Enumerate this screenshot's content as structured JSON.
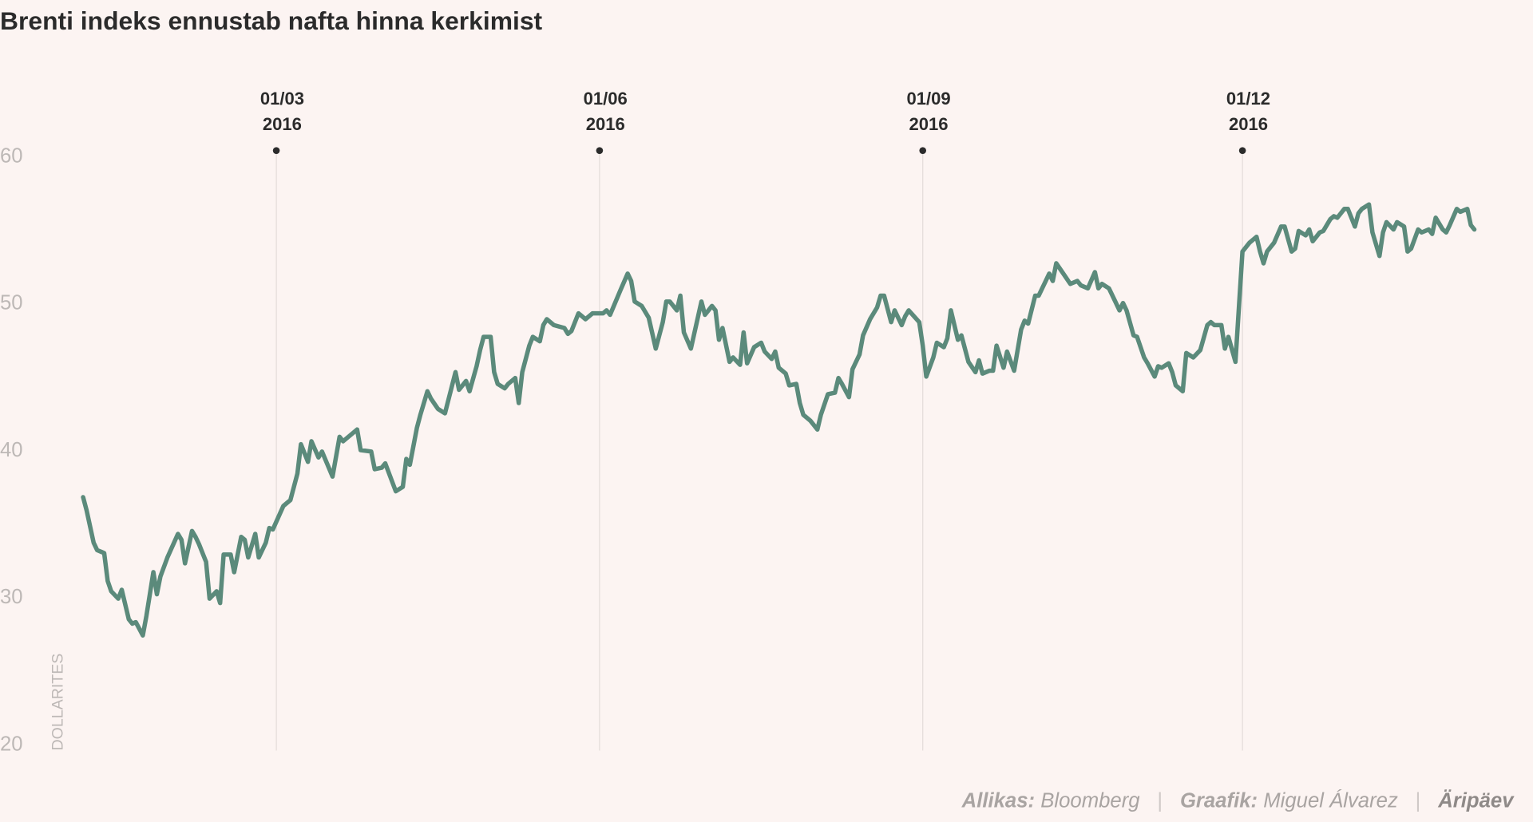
{
  "chart_data": {
    "type": "line",
    "title": "Brenti indeks ennustab nafta hinna kerkimist",
    "y_label": "DOLLARITES",
    "color": "#5b8a7b",
    "ylim": [
      20,
      60
    ],
    "yticks": [
      20,
      30,
      40,
      50,
      60
    ],
    "xlim": [
      "2016-01-06",
      "2017-02-05"
    ],
    "xticks": [
      {
        "value": "2016-03-01",
        "label": "01/03\n2016"
      },
      {
        "value": "2016-06-01",
        "label": "01/06\n2016"
      },
      {
        "value": "2016-09-01",
        "label": "01/09\n2016"
      },
      {
        "value": "2016-12-01",
        "label": "01/12\n2016"
      }
    ],
    "grid": true,
    "footer": {
      "source_label": "Allikas:",
      "source": "Bloomberg",
      "separator": "|",
      "author_label": "Graafik:",
      "author": "Miguel Álvarez",
      "brand": "Äripäev"
    },
    "x": [
      "2016-01-06",
      "2016-01-07",
      "2016-01-09",
      "2016-01-10",
      "2016-01-12",
      "2016-01-13",
      "2016-01-14",
      "2016-01-16",
      "2016-01-17",
      "2016-01-19",
      "2016-01-20",
      "2016-01-21",
      "2016-01-23",
      "2016-01-24",
      "2016-01-26",
      "2016-01-27",
      "2016-01-28",
      "2016-01-30",
      "2016-02-02",
      "2016-02-03",
      "2016-02-04",
      "2016-02-06",
      "2016-02-07",
      "2016-02-08",
      "2016-02-10",
      "2016-02-11",
      "2016-02-13",
      "2016-02-14",
      "2016-02-15",
      "2016-02-17",
      "2016-02-18",
      "2016-02-20",
      "2016-02-21",
      "2016-02-22",
      "2016-02-24",
      "2016-02-25",
      "2016-02-27",
      "2016-02-28",
      "2016-02-29",
      "2016-03-03",
      "2016-03-05",
      "2016-03-07",
      "2016-03-08",
      "2016-03-10",
      "2016-03-11",
      "2016-03-13",
      "2016-03-14",
      "2016-03-17",
      "2016-03-19",
      "2016-03-20",
      "2016-03-22",
      "2016-03-24",
      "2016-03-25",
      "2016-03-28",
      "2016-03-29",
      "2016-03-31",
      "2016-04-01",
      "2016-04-04",
      "2016-04-06",
      "2016-04-07",
      "2016-04-08",
      "2016-04-10",
      "2016-04-11",
      "2016-04-13",
      "2016-04-14",
      "2016-04-16",
      "2016-04-18",
      "2016-04-21",
      "2016-04-22",
      "2016-04-24",
      "2016-04-25",
      "2016-04-27",
      "2016-04-28",
      "2016-04-29",
      "2016-05-01",
      "2016-05-02",
      "2016-05-03",
      "2016-05-05",
      "2016-05-06",
      "2016-05-08",
      "2016-05-09",
      "2016-05-10",
      "2016-05-12",
      "2016-05-13",
      "2016-05-15",
      "2016-05-16",
      "2016-05-17",
      "2016-05-19",
      "2016-05-22",
      "2016-05-23",
      "2016-05-24",
      "2016-05-26",
      "2016-05-27",
      "2016-05-28",
      "2016-05-30",
      "2016-06-02",
      "2016-06-03",
      "2016-06-04",
      "2016-06-07",
      "2016-06-09",
      "2016-06-10",
      "2016-06-11",
      "2016-06-13",
      "2016-06-15",
      "2016-06-17",
      "2016-06-19",
      "2016-06-20",
      "2016-06-21",
      "2016-06-23",
      "2016-06-24",
      "2016-06-25",
      "2016-06-27",
      "2016-06-30",
      "2016-07-01",
      "2016-07-03",
      "2016-07-04",
      "2016-07-05",
      "2016-07-06",
      "2016-07-08",
      "2016-07-09",
      "2016-07-11",
      "2016-07-12",
      "2016-07-13",
      "2016-07-15",
      "2016-07-17",
      "2016-07-18",
      "2016-07-20",
      "2016-07-21",
      "2016-07-22",
      "2016-07-24",
      "2016-07-25",
      "2016-07-27",
      "2016-07-28",
      "2016-07-29",
      "2016-07-31",
      "2016-08-02",
      "2016-08-03",
      "2016-08-05",
      "2016-08-07",
      "2016-08-08",
      "2016-08-09",
      "2016-08-11",
      "2016-08-12",
      "2016-08-14",
      "2016-08-15",
      "2016-08-17",
      "2016-08-19",
      "2016-08-20",
      "2016-08-21",
      "2016-08-23",
      "2016-08-24",
      "2016-08-26",
      "2016-08-27",
      "2016-08-28",
      "2016-08-31",
      "2016-09-01",
      "2016-09-02",
      "2016-09-04",
      "2016-09-05",
      "2016-09-07",
      "2016-09-08",
      "2016-09-09",
      "2016-09-11",
      "2016-09-12",
      "2016-09-14",
      "2016-09-16",
      "2016-09-17",
      "2016-09-18",
      "2016-09-20",
      "2016-09-21",
      "2016-09-22",
      "2016-09-24",
      "2016-09-25",
      "2016-09-27",
      "2016-09-29",
      "2016-09-30",
      "2016-10-01",
      "2016-10-03",
      "2016-10-04",
      "2016-10-06",
      "2016-10-07",
      "2016-10-08",
      "2016-10-09",
      "2016-10-11",
      "2016-10-13",
      "2016-10-15",
      "2016-10-16",
      "2016-10-18",
      "2016-10-20",
      "2016-10-21",
      "2016-10-22",
      "2016-10-24",
      "2016-10-26",
      "2016-10-27",
      "2016-10-28",
      "2016-10-29",
      "2016-10-31",
      "2016-11-01",
      "2016-11-03",
      "2016-11-04",
      "2016-11-06",
      "2016-11-07",
      "2016-11-08",
      "2016-11-10",
      "2016-11-11",
      "2016-11-12",
      "2016-11-14",
      "2016-11-15",
      "2016-11-17",
      "2016-11-19",
      "2016-11-21",
      "2016-11-22",
      "2016-11-23",
      "2016-11-25",
      "2016-11-26",
      "2016-11-27",
      "2016-11-29",
      "2016-12-01",
      "2016-12-03",
      "2016-12-05",
      "2016-12-06",
      "2016-12-07",
      "2016-12-08",
      "2016-12-10",
      "2016-12-12",
      "2016-12-13",
      "2016-12-15",
      "2016-12-16",
      "2016-12-17",
      "2016-12-19",
      "2016-12-20",
      "2016-12-21",
      "2016-12-23",
      "2016-12-24",
      "2016-12-26",
      "2016-12-27",
      "2016-12-28",
      "2016-12-30",
      "2016-12-31",
      "2017-01-02",
      "2017-01-03",
      "2017-01-04",
      "2017-01-06",
      "2017-01-07",
      "2017-01-09",
      "2017-01-10",
      "2017-01-11",
      "2017-01-13",
      "2017-01-14",
      "2017-01-16",
      "2017-01-17",
      "2017-01-18",
      "2017-01-20",
      "2017-01-21",
      "2017-01-23",
      "2017-01-24",
      "2017-01-25",
      "2017-01-27",
      "2017-01-28",
      "2017-01-29",
      "2017-01-31",
      "2017-02-01",
      "2017-02-03",
      "2017-02-04",
      "2017-02-05"
    ],
    "values": [
      36.7,
      35.8,
      33.6,
      33.1,
      32.9,
      31.0,
      30.3,
      29.8,
      30.4,
      28.4,
      28.1,
      28.2,
      27.3,
      28.6,
      31.6,
      30.1,
      31.3,
      32.6,
      34.2,
      33.8,
      32.2,
      34.4,
      34.0,
      33.5,
      32.3,
      29.8,
      30.3,
      29.5,
      32.8,
      32.8,
      31.6,
      34.0,
      33.8,
      32.6,
      34.2,
      32.6,
      33.6,
      34.6,
      34.5,
      36.1,
      36.5,
      38.3,
      40.3,
      39.1,
      40.5,
      39.4,
      39.8,
      38.1,
      40.8,
      40.5,
      40.9,
      41.3,
      39.9,
      39.8,
      38.6,
      38.7,
      39.0,
      37.1,
      37.4,
      39.3,
      38.9,
      41.4,
      42.3,
      43.9,
      43.4,
      42.7,
      42.4,
      45.2,
      44.0,
      44.6,
      43.9,
      45.6,
      46.7,
      47.6,
      47.6,
      45.2,
      44.4,
      44.1,
      44.4,
      44.8,
      43.1,
      45.2,
      47.0,
      47.6,
      47.3,
      48.4,
      48.8,
      48.4,
      48.2,
      47.8,
      48.0,
      49.2,
      49.0,
      48.8,
      49.2,
      49.2,
      49.4,
      49.1,
      50.8,
      51.9,
      51.4,
      50.0,
      49.7,
      48.9,
      46.8,
      48.6,
      50.0,
      50.0,
      49.4,
      50.4,
      47.9,
      46.8,
      50.0,
      49.1,
      49.7,
      49.4,
      47.4,
      48.2,
      45.9,
      46.2,
      45.7,
      47.9,
      45.8,
      46.9,
      47.2,
      46.6,
      46.1,
      46.6,
      45.5,
      45.1,
      44.3,
      44.4,
      43.1,
      42.3,
      41.9,
      41.3,
      42.3,
      43.7,
      43.8,
      44.8,
      44.4,
      43.5,
      45.4,
      46.4,
      47.7,
      48.8,
      49.6,
      50.4,
      50.4,
      48.6,
      49.4,
      48.4,
      49.0,
      49.4,
      48.6,
      47.0,
      44.9,
      46.2,
      47.2,
      46.9,
      47.5,
      49.4,
      47.4,
      47.7,
      45.9,
      45.2,
      46.0,
      45.1,
      45.3,
      45.3,
      47.0,
      45.5,
      46.6,
      45.3,
      48.1,
      48.7,
      48.5,
      50.4,
      50.4,
      51.4,
      51.9,
      51.4,
      52.6,
      51.9,
      51.2,
      51.4,
      51.1,
      50.9,
      52.0,
      50.9,
      51.2,
      50.9,
      49.9,
      49.4,
      49.9,
      49.4,
      47.7,
      47.6,
      46.2,
      45.8,
      44.9,
      45.6,
      45.5,
      45.8,
      45.2,
      44.3,
      43.9,
      46.5,
      46.2,
      46.7,
      48.4,
      48.6,
      48.4,
      48.4,
      46.8,
      47.6,
      45.9,
      53.4,
      54.0,
      54.4,
      53.4,
      52.6,
      53.4,
      54.0,
      55.1,
      55.1,
      53.4,
      53.6,
      54.8,
      54.5,
      54.9,
      54.1,
      54.7,
      54.8,
      55.6,
      55.8,
      55.7,
      56.3,
      56.3,
      55.1,
      56.0,
      56.3,
      56.6,
      54.7,
      53.1,
      54.7,
      55.4,
      54.9,
      55.4,
      55.1,
      53.4,
      53.6,
      54.9,
      54.7,
      54.9,
      54.6,
      55.7,
      54.9,
      54.7,
      55.2,
      56.3,
      56.1,
      56.3,
      55.2,
      54.9
    ]
  }
}
